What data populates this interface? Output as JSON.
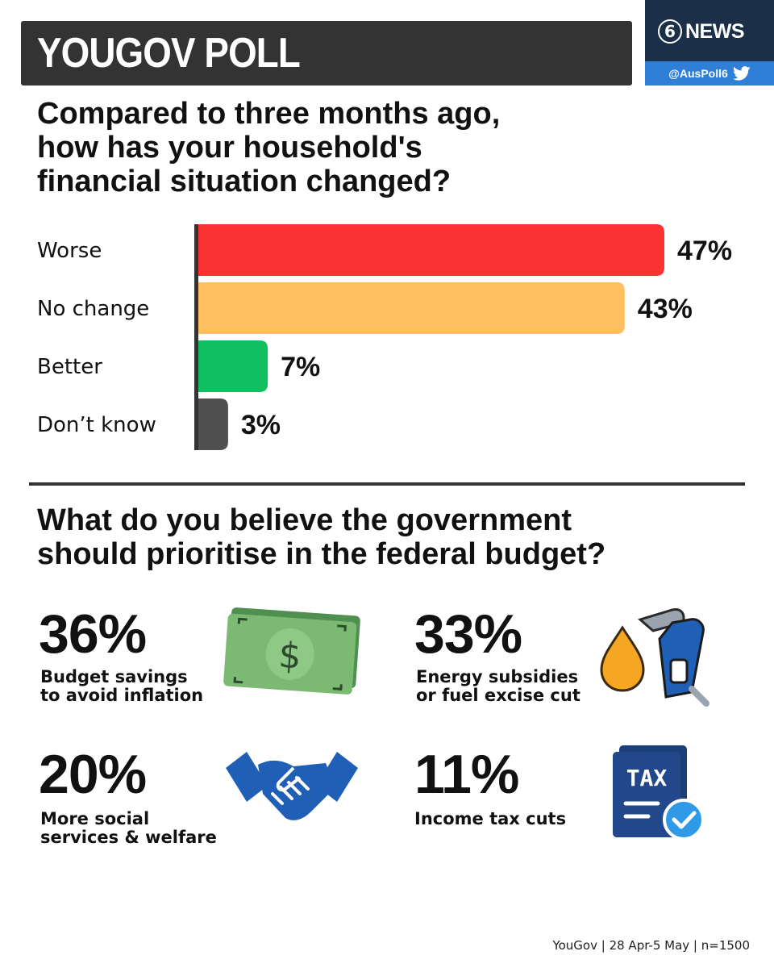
{
  "header": {
    "title": "YOUGOV POLL"
  },
  "brand": {
    "logo_number": "6",
    "logo_text": "NEWS",
    "handle": "@AusPoll6"
  },
  "question1": {
    "title_lines": [
      "Compared to three months ago,",
      "how has your household's",
      "financial situation changed?"
    ]
  },
  "chart_data": {
    "type": "bar",
    "orientation": "horizontal",
    "categories": [
      "Worse",
      "No change",
      "Better",
      "Don’t know"
    ],
    "values": [
      47,
      43,
      7,
      3
    ],
    "value_labels": [
      "47%",
      "43%",
      "7%",
      "3%"
    ],
    "colors": [
      "#fb3232",
      "#fdbf5f",
      "#10c060",
      "#505050"
    ],
    "xlim": [
      0,
      50
    ],
    "grid": false,
    "legend": "none"
  },
  "question2": {
    "title_lines": [
      "What do you believe the government",
      "should prioritise in the federal budget?"
    ]
  },
  "priorities": [
    {
      "value": "36%",
      "label_lines": [
        "Budget savings",
        "to avoid inflation"
      ],
      "icon": "money-icon"
    },
    {
      "value": "33%",
      "label_lines": [
        "Energy subsidies",
        "or fuel excise cut"
      ],
      "icon": "fuel-pump-icon"
    },
    {
      "value": "20%",
      "label_lines": [
        "More social",
        "services & welfare"
      ],
      "icon": "handshake-icon"
    },
    {
      "value": "11%",
      "label_lines": [
        "Income tax cuts"
      ],
      "icon": "tax-document-icon"
    }
  ],
  "footer": {
    "source": "YouGov | 28 Apr-5 May | n=1500"
  },
  "colors": {
    "header_bg": "#333333",
    "brand_bg": "#1c2f48",
    "handle_bg": "#2f7fd6",
    "icon_blue": "#1f5fb5",
    "money_green": "#6aa86a"
  }
}
